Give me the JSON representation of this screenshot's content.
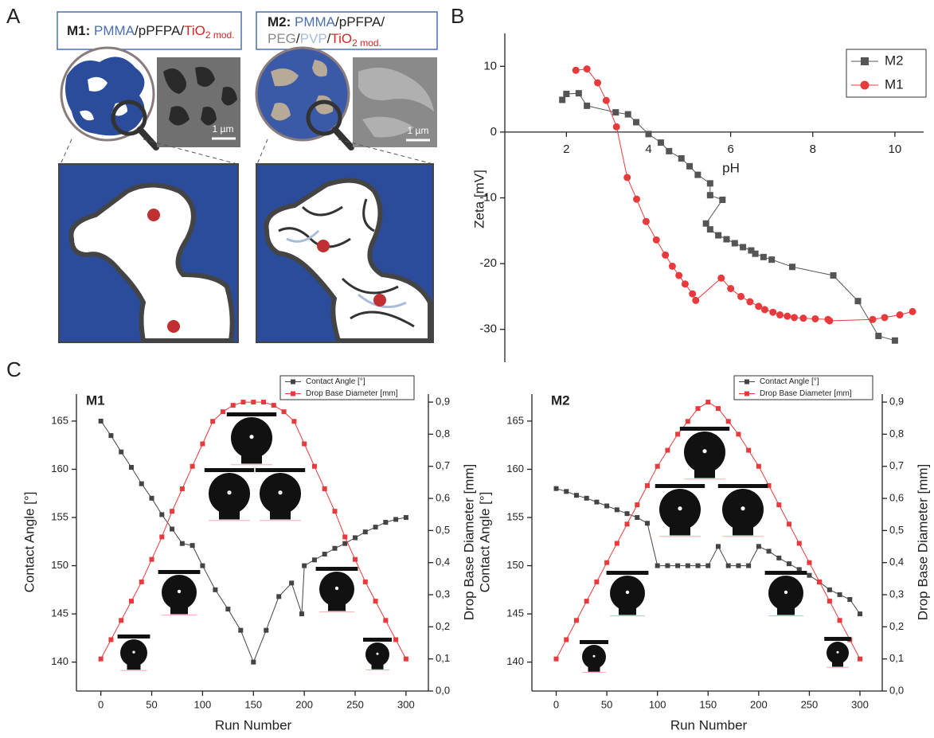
{
  "panel_labels": [
    "A",
    "B",
    "C"
  ],
  "membranes": [
    {
      "parts": [
        "M1:",
        "PMMA",
        "/pPFPA/",
        "TiO",
        "2",
        " mod."
      ],
      "scale_bar": "1 µm"
    },
    {
      "parts": [
        "M2:",
        "PMMA",
        "/pPFPA/",
        "PEG",
        "/",
        "PVP",
        "/",
        "TiO",
        "2",
        " mod."
      ],
      "scale_bar": "1 µm"
    }
  ],
  "chart_data": [
    {
      "type": "line",
      "xlabel": "pH",
      "ylabel": "Zeta [mV]",
      "xlim": [
        0.5,
        10.7
      ],
      "ylim": [
        -35,
        15
      ],
      "xticks": [
        2,
        4,
        6,
        8,
        10
      ],
      "yticks": [
        -30,
        -20,
        -10,
        0,
        10
      ],
      "legend": "upper right",
      "series": [
        {
          "name": "M2",
          "color": "#555555",
          "marker": "square",
          "x": [
            1.9,
            2.0,
            2.3,
            2.5,
            3.2,
            3.5,
            3.7,
            4.0,
            4.3,
            4.5,
            4.8,
            5.0,
            5.2,
            5.5,
            5.5,
            5.8,
            5.4,
            5.5,
            5.7,
            5.9,
            6.1,
            6.3,
            6.5,
            6.6,
            6.8,
            7.0,
            7.5,
            8.5,
            9.1,
            9.6,
            10.0
          ],
          "values": [
            4.9,
            5.8,
            5.9,
            4.0,
            3.0,
            2.7,
            1.5,
            -0.3,
            -1.6,
            -2.9,
            -4.0,
            -5.2,
            -6.5,
            -7.8,
            -9.6,
            -10.3,
            -13.9,
            -14.8,
            -15.7,
            -16.3,
            -16.9,
            -17.5,
            -18.0,
            -18.5,
            -19.0,
            -19.4,
            -20.5,
            -21.8,
            -25.7,
            -31.0,
            -31.7
          ]
        },
        {
          "name": "M1",
          "color": "#e8393c",
          "marker": "circle",
          "x": [
            2.23,
            2.5,
            2.76,
            2.97,
            3.22,
            3.48,
            3.71,
            3.94,
            4.19,
            4.41,
            4.58,
            4.74,
            4.89,
            5.07,
            5.15,
            5.77,
            6.0,
            6.25,
            6.47,
            6.68,
            6.83,
            7.03,
            7.2,
            7.38,
            7.55,
            7.77,
            8.06,
            8.37,
            8.41,
            9.46,
            9.75,
            10.12,
            10.43
          ],
          "values": [
            9.4,
            9.6,
            7.5,
            4.8,
            0.8,
            -6.9,
            -10.2,
            -13.6,
            -16.4,
            -18.7,
            -20.4,
            -21.8,
            -23.1,
            -24.6,
            -25.6,
            -22.2,
            -23.8,
            -25.0,
            -25.8,
            -26.5,
            -27.0,
            -27.4,
            -27.8,
            -28.0,
            -28.2,
            -28.3,
            -28.4,
            -28.5,
            -28.7,
            -28.5,
            -28.2,
            -27.8,
            -27.3
          ]
        }
      ]
    },
    {
      "type": "line",
      "title": "M1",
      "xlabel": "Run Number",
      "ylabel": "Contact Angle [°]",
      "y2label": "Drop Base Diameter [mm]",
      "xlim": [
        -24,
        322
      ],
      "ylim": [
        137,
        167.8
      ],
      "y2lim": [
        0,
        0.925
      ],
      "xticks": [
        0,
        50,
        100,
        150,
        200,
        250,
        300
      ],
      "yticks": [
        140,
        145,
        150,
        155,
        160,
        165
      ],
      "y2ticks": [
        {
          "value": 0,
          "label": "0,0"
        },
        {
          "value": 0.1,
          "label": "0,1"
        },
        {
          "value": 0.2,
          "label": "0,2"
        },
        {
          "value": 0.3,
          "label": "0,3"
        },
        {
          "value": 0.4,
          "label": "0,4"
        },
        {
          "value": 0.5,
          "label": "0,5"
        },
        {
          "value": 0.6,
          "label": "0,6"
        },
        {
          "value": 0.7,
          "label": "0,7"
        },
        {
          "value": 0.8,
          "label": "0,8"
        },
        {
          "value": 0.9,
          "label": "0,9"
        }
      ],
      "legend": "upper center",
      "series": [
        {
          "name": "Contact Angle [°]",
          "color": "#444444",
          "marker": "square",
          "x": [
            0,
            10,
            20,
            30,
            40,
            50,
            60,
            70,
            80,
            90,
            100,
            112.5,
            125,
            137.5,
            150,
            162.5,
            175,
            187.5,
            197.5,
            200,
            210,
            220,
            230,
            240,
            250,
            260,
            270,
            280,
            290,
            300
          ],
          "values": [
            165,
            163.5,
            161.8,
            160.2,
            158.5,
            157,
            155.3,
            153.8,
            152.3,
            152.1,
            150,
            147.5,
            145.5,
            143.3,
            140,
            143.3,
            146.8,
            148.2,
            145,
            150,
            150.6,
            151.2,
            151.8,
            152.3,
            152.9,
            153.5,
            154,
            154.5,
            154.8,
            155
          ]
        },
        {
          "name": "Drop Base Diameter [mm]",
          "color": "#e8393c",
          "marker": "square",
          "axis": "y2",
          "x": [
            0,
            10,
            20,
            30,
            40,
            50,
            60,
            70,
            80,
            90,
            100,
            110,
            120,
            130,
            140,
            150,
            160,
            170,
            180,
            190,
            200,
            210,
            220,
            230,
            240,
            250,
            260,
            270,
            280,
            290,
            300
          ],
          "values": [
            0.1,
            0.16,
            0.22,
            0.28,
            0.34,
            0.41,
            0.48,
            0.56,
            0.63,
            0.7,
            0.77,
            0.84,
            0.87,
            0.89,
            0.9,
            0.9,
            0.9,
            0.89,
            0.87,
            0.84,
            0.77,
            0.7,
            0.63,
            0.56,
            0.48,
            0.41,
            0.34,
            0.28,
            0.22,
            0.16,
            0.1
          ]
        }
      ]
    },
    {
      "type": "line",
      "title": "M2",
      "xlabel": "Run Number",
      "ylabel": "Contact Angle [°]",
      "y2label": "Drop Base Diameter [mm]",
      "xlim": [
        -24,
        322
      ],
      "ylim": [
        137,
        167.8
      ],
      "y2lim": [
        0,
        0.925
      ],
      "xticks": [
        0,
        50,
        100,
        150,
        200,
        250,
        300
      ],
      "yticks": [
        140,
        145,
        150,
        155,
        160,
        165
      ],
      "y2ticks": [
        {
          "value": 0,
          "label": "0,0"
        },
        {
          "value": 0.1,
          "label": "0,1"
        },
        {
          "value": 0.2,
          "label": "0,2"
        },
        {
          "value": 0.3,
          "label": "0,3"
        },
        {
          "value": 0.4,
          "label": "0,4"
        },
        {
          "value": 0.5,
          "label": "0,5"
        },
        {
          "value": 0.6,
          "label": "0,6"
        },
        {
          "value": 0.7,
          "label": "0,7"
        },
        {
          "value": 0.8,
          "label": "0,8"
        },
        {
          "value": 0.9,
          "label": "0,9"
        }
      ],
      "legend": "upper center",
      "series": [
        {
          "name": "Contact Angle [°]",
          "color": "#444444",
          "marker": "square",
          "x": [
            0,
            10,
            20,
            30,
            40,
            50,
            60,
            70,
            80,
            90,
            100,
            110,
            120,
            130,
            140,
            150,
            160,
            170,
            180,
            190,
            200,
            210,
            220,
            230,
            240,
            250,
            260,
            270,
            280,
            290,
            300
          ],
          "values": [
            158,
            157.7,
            157.3,
            157,
            156.6,
            156.2,
            155.8,
            155.4,
            155,
            154.4,
            150,
            150,
            150,
            150,
            150,
            150,
            152,
            150,
            150,
            150,
            152,
            151.5,
            150.8,
            150.2,
            149.6,
            149,
            148.3,
            147.5,
            147,
            146.5,
            145
          ]
        },
        {
          "name": "Drop Base Diameter [mm]",
          "color": "#e8393c",
          "marker": "square",
          "axis": "y2",
          "x": [
            0,
            10,
            20,
            30,
            40,
            50,
            60,
            70,
            80,
            90,
            100,
            110,
            120,
            130,
            140,
            150,
            160,
            170,
            180,
            190,
            200,
            210,
            220,
            230,
            240,
            250,
            260,
            270,
            280,
            290,
            300
          ],
          "values": [
            0.1,
            0.16,
            0.22,
            0.28,
            0.34,
            0.4,
            0.46,
            0.52,
            0.58,
            0.64,
            0.7,
            0.75,
            0.8,
            0.84,
            0.88,
            0.9,
            0.88,
            0.84,
            0.8,
            0.75,
            0.7,
            0.64,
            0.58,
            0.52,
            0.46,
            0.4,
            0.34,
            0.28,
            0.22,
            0.16,
            0.1
          ]
        }
      ]
    }
  ]
}
